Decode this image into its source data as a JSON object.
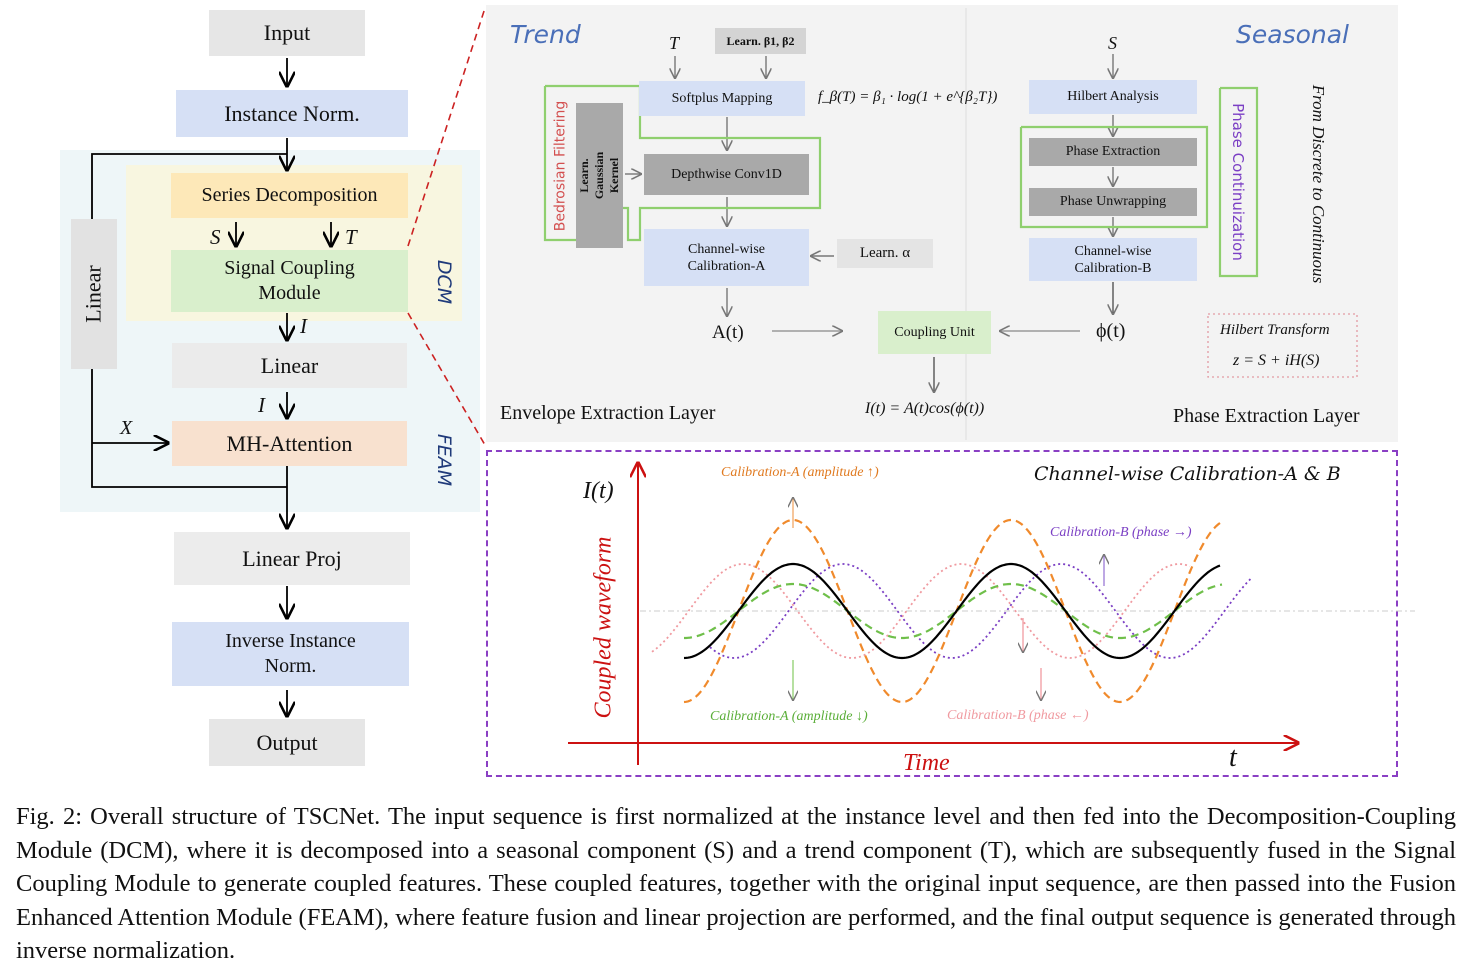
{
  "left_flow": {
    "input": "Input",
    "instance_norm": "Instance Norm.",
    "series_decomp": "Series Decomposition",
    "signal_coupling": "Signal Coupling Module",
    "linear_side": "Linear",
    "linear_mid": "Linear",
    "mh_attention": "MH-Attention",
    "linear_proj": "Linear Proj",
    "inverse_norm": "Inverse Instance Norm.",
    "output": "Output",
    "label_s": "S",
    "label_t": "T",
    "label_i1": "I",
    "label_i2": "I",
    "label_x": "X",
    "dcm": "DCM",
    "feam": "FEAM"
  },
  "top_panel": {
    "trend_title": "Trend",
    "seasonal_title": "Seasonal",
    "t_input": "T",
    "s_input": "S",
    "learn_beta": "Learn. β1, β2",
    "softplus": "Softplus Mapping",
    "softplus_formula": "f_β(T) = β₁ · log(1 + e^{β₂T})",
    "bedrosian": "Bedrosian Filtering",
    "learn_gaussian": "Learn. Gaussian Kernel",
    "depthwise": "Depthwise Conv1D",
    "calib_a": "Channel-wise Calibration-A",
    "learn_alpha": "Learn. α",
    "a_t": "A(t)",
    "coupling_unit": "Coupling Unit",
    "phi_t": "ϕ(t)",
    "coupling_formula": "I(t) = A(t)cos(ϕ(t))",
    "envelope_layer": "Envelope Extraction Layer",
    "hilbert_analysis": "Hilbert Analysis",
    "phase_extraction": "Phase Extraction",
    "phase_unwrapping": "Phase Unwrapping",
    "calib_b": "Channel-wise Calibration-B",
    "phase_continuization": "Phase Continuization",
    "discrete_to_continuous": "From Discrete to Continuous",
    "hilbert_transform_title": "Hilbert Transform",
    "hilbert_transform_formula": "z = S + iH(S)",
    "phase_layer": "Phase Extraction Layer"
  },
  "chart": {
    "title": "Channel-wise Calibration-A & B",
    "y_label": "Coupled waveform",
    "y_symbol": "I(t)",
    "x_label": "Time",
    "x_symbol": "t",
    "ann_amp_up": "Calibration-A (amplitude ↑)",
    "ann_amp_down": "Calibration-A (amplitude ↓)",
    "ann_phase_right": "Calibration-B (phase →)",
    "ann_phase_left": "Calibration-B (phase ←)",
    "colors": {
      "base": "#000000",
      "amp_up": "#f08a2c",
      "amp_down": "#6fbf4a",
      "phase_right": "#7b3fc4",
      "phase_left": "#f09aa0",
      "axis": "#cc1111"
    }
  },
  "caption": "Fig. 2: Overall structure of TSCNet. The input sequence is first normalized at the instance level and then fed into the Decomposition-Coupling Module (DCM), where it is decomposed into a seasonal component (S) and a trend component (T), which are subsequently fused in the Signal Coupling Module to generate coupled features. These coupled features, together with the original input sequence, are then passed into the Fusion Enhanced Attention Module (FEAM), where feature fusion and linear projection are performed, and the final output sequence is generated through inverse normalization."
}
